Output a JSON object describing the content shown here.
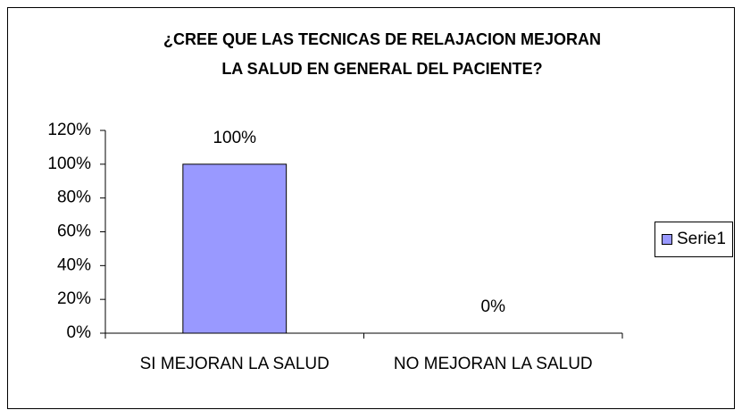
{
  "chart_data": {
    "type": "bar",
    "title": [
      "¿CREE QUE LAS TECNICAS DE RELAJACION MEJORAN",
      "LA SALUD EN GENERAL DEL PACIENTE?"
    ],
    "categories": [
      "SI MEJORAN LA SALUD",
      "NO MEJORAN LA SALUD"
    ],
    "series": [
      {
        "name": "Serie1",
        "color": "#9999ff",
        "values": [
          100,
          0
        ],
        "value_labels": [
          "100%",
          "0%"
        ]
      }
    ],
    "ylim": [
      0,
      120
    ],
    "yticks": [
      {
        "value": 0,
        "label": "0%"
      },
      {
        "value": 20,
        "label": "20%"
      },
      {
        "value": 40,
        "label": "40%"
      },
      {
        "value": 60,
        "label": "60%"
      },
      {
        "value": 80,
        "label": "80%"
      },
      {
        "value": 100,
        "label": "100%"
      },
      {
        "value": 120,
        "label": "120%"
      }
    ],
    "grid": false,
    "legend": "right"
  }
}
